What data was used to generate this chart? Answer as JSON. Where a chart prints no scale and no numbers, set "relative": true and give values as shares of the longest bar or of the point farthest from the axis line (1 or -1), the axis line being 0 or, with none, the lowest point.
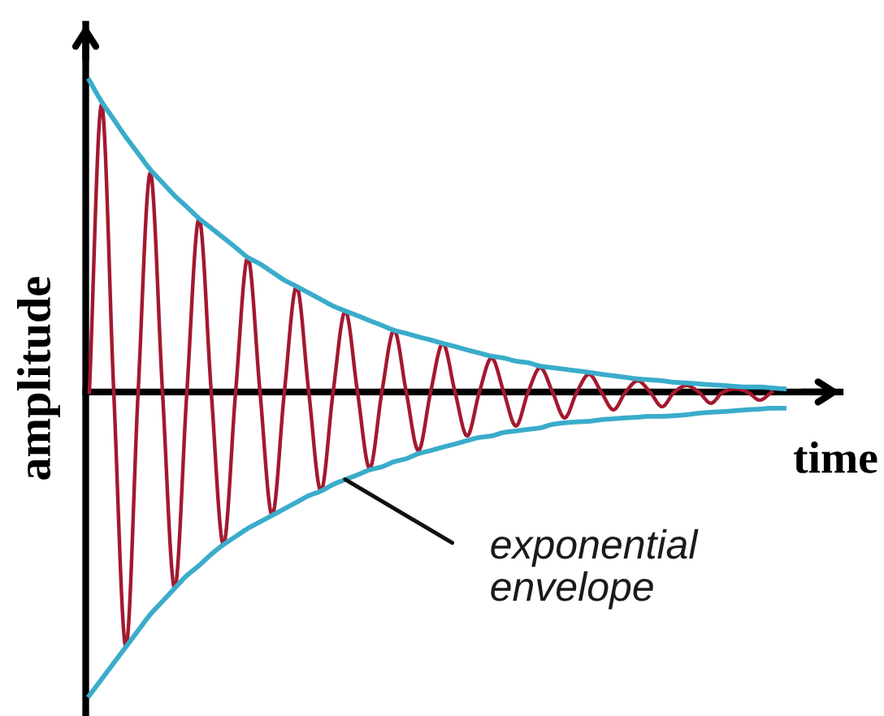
{
  "chart_data": {
    "type": "line",
    "relative": true,
    "xlabel": "time",
    "ylabel": "amplitude",
    "categories": [
      null,
      null,
      null,
      null,
      null,
      null,
      null,
      null,
      null,
      null,
      null,
      null,
      null,
      null,
      null,
      null,
      null,
      null,
      null,
      null,
      null,
      null,
      null,
      null,
      null,
      null,
      null,
      null,
      null,
      null,
      null,
      null,
      null,
      null,
      null,
      null,
      null,
      null,
      null,
      null,
      null,
      null,
      null,
      null,
      null,
      null,
      null,
      null,
      null,
      null,
      null,
      null,
      null,
      null,
      null,
      null,
      null,
      null
    ],
    "series": [
      {
        "color": "#a3192f",
        "values": [
          0,
          0.922,
          0,
          -0.818,
          0,
          0.703,
          0,
          -0.63,
          0,
          0.557,
          0,
          -0.49,
          0,
          0.432,
          0,
          -0.396,
          0,
          0.339,
          0,
          -0.318,
          0,
          0.26,
          0,
          -0.245,
          0,
          0.198,
          0,
          -0.188,
          0,
          0.156,
          0,
          -0.141,
          0,
          0.109,
          0,
          -0.109,
          0,
          0.078,
          0,
          -0.083,
          0,
          0.057,
          0,
          -0.057,
          0,
          0.036,
          0,
          -0.047,
          0,
          0.021,
          0,
          -0.036,
          0,
          0.01,
          0,
          -0.026,
          0,
          null
        ]
      },
      {
        "color": "#3aaccb",
        "values": [
          1.0,
          0.932,
          0.875,
          0.818,
          0.766,
          0.714,
          0.672,
          0.63,
          0.594,
          0.557,
          0.526,
          0.495,
          0.464,
          0.432,
          0.411,
          0.385,
          0.359,
          0.339,
          0.318,
          0.297,
          0.276,
          0.26,
          0.245,
          0.229,
          0.214,
          0.198,
          0.188,
          0.177,
          0.167,
          0.156,
          0.146,
          0.135,
          0.125,
          0.115,
          0.109,
          0.099,
          0.094,
          0.083,
          0.078,
          0.073,
          0.068,
          0.063,
          0.057,
          0.052,
          0.047,
          0.042,
          0.039,
          0.036,
          0.031,
          0.029,
          0.026,
          0.023,
          0.021,
          0.018,
          0.016,
          0.016,
          0.013,
          0.01
        ]
      },
      {
        "color": "#3aaccb",
        "values": [
          -0.974,
          -0.922,
          -0.87,
          -0.818,
          -0.766,
          -0.714,
          -0.672,
          -0.63,
          -0.589,
          -0.557,
          -0.521,
          -0.49,
          -0.464,
          -0.438,
          -0.417,
          -0.396,
          -0.375,
          -0.354,
          -0.333,
          -0.318,
          -0.297,
          -0.281,
          -0.266,
          -0.25,
          -0.24,
          -0.224,
          -0.214,
          -0.198,
          -0.188,
          -0.177,
          -0.167,
          -0.156,
          -0.146,
          -0.141,
          -0.13,
          -0.125,
          -0.12,
          -0.115,
          -0.104,
          -0.099,
          -0.096,
          -0.094,
          -0.089,
          -0.086,
          -0.083,
          -0.081,
          -0.078,
          -0.078,
          -0.076,
          -0.073,
          -0.068,
          -0.065,
          -0.063,
          -0.06,
          -0.057,
          -0.055,
          -0.052,
          -0.052
        ]
      }
    ],
    "annotations": [
      "exponential envelope"
    ]
  }
}
